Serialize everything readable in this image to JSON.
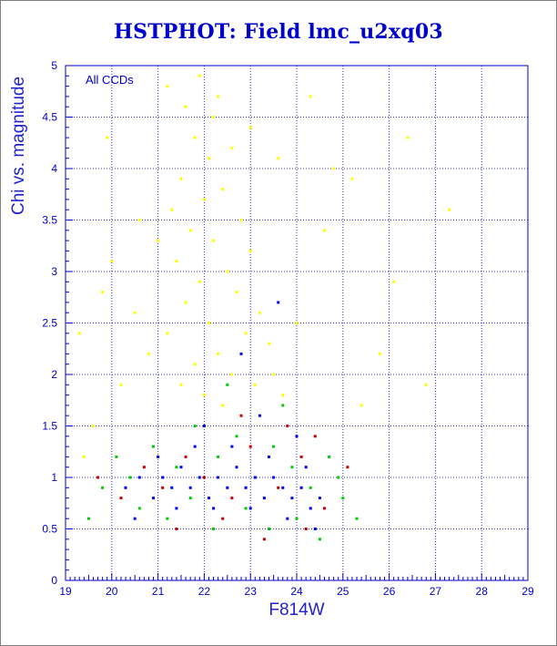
{
  "chart_data": {
    "type": "scatter",
    "title": "HSTPHOT: Field lmc_u2xq03",
    "xlabel": "F814W",
    "ylabel": "Chi vs. magnitude",
    "annotation": "All CCDs",
    "xlim": [
      19,
      29
    ],
    "ylim": [
      0,
      5
    ],
    "x_ticks": [
      "19",
      "20",
      "21",
      "22",
      "23",
      "24",
      "25",
      "26",
      "27",
      "28",
      "29"
    ],
    "y_ticks": [
      "0",
      "0.5",
      "1",
      "1.5",
      "2",
      "2.5",
      "3",
      "3.5",
      "4",
      "4.5",
      "5"
    ],
    "grid": true,
    "colors": {
      "axes": "#0000cc",
      "grid": "#3333cc",
      "yellow": "#ffff00",
      "blue": "#0000ff",
      "green": "#00cc00",
      "red": "#cc0000"
    },
    "series": [
      {
        "color": "yellow",
        "points": [
          [
            21.2,
            4.8
          ],
          [
            21.6,
            4.6
          ],
          [
            21.9,
            4.9
          ],
          [
            22.3,
            4.7
          ],
          [
            21.8,
            4.3
          ],
          [
            22.1,
            4.1
          ],
          [
            21.5,
            3.9
          ],
          [
            22.6,
            4.2
          ],
          [
            21.3,
            3.6
          ],
          [
            22.0,
            3.7
          ],
          [
            22.4,
            3.8
          ],
          [
            21.7,
            3.4
          ],
          [
            22.2,
            3.3
          ],
          [
            22.8,
            3.5
          ],
          [
            21.4,
            3.1
          ],
          [
            22.5,
            3.0
          ],
          [
            23.0,
            3.2
          ],
          [
            21.9,
            2.9
          ],
          [
            22.7,
            2.8
          ],
          [
            23.2,
            2.6
          ],
          [
            21.6,
            2.7
          ],
          [
            22.1,
            2.5
          ],
          [
            22.9,
            2.4
          ],
          [
            23.4,
            2.3
          ],
          [
            21.2,
            2.4
          ],
          [
            22.3,
            2.2
          ],
          [
            22.6,
            2.0
          ],
          [
            23.1,
            1.9
          ],
          [
            21.8,
            2.1
          ],
          [
            23.5,
            2.0
          ],
          [
            22.0,
            1.8
          ],
          [
            22.4,
            1.7
          ],
          [
            23.7,
            1.8
          ],
          [
            21.5,
            1.9
          ],
          [
            22.8,
            1.6
          ],
          [
            20.8,
            2.2
          ],
          [
            20.5,
            2.6
          ],
          [
            20.2,
            1.9
          ],
          [
            19.8,
            2.8
          ],
          [
            19.6,
            1.5
          ],
          [
            20.0,
            3.1
          ],
          [
            20.6,
            3.5
          ],
          [
            19.9,
            4.3
          ],
          [
            24.0,
            2.5
          ],
          [
            24.6,
            3.4
          ],
          [
            25.2,
            3.9
          ],
          [
            25.8,
            2.2
          ],
          [
            26.4,
            4.3
          ],
          [
            26.8,
            1.9
          ],
          [
            27.3,
            3.6
          ],
          [
            24.3,
            4.7
          ],
          [
            23.6,
            4.1
          ],
          [
            25.4,
            1.7
          ],
          [
            26.1,
            2.9
          ],
          [
            19.4,
            1.2
          ],
          [
            19.3,
            2.4
          ],
          [
            22.2,
            4.5
          ],
          [
            23.0,
            4.4
          ],
          [
            21.0,
            3.3
          ],
          [
            24.8,
            4.0
          ]
        ]
      },
      {
        "color": "green",
        "points": [
          [
            20.4,
            1.0
          ],
          [
            20.9,
            1.3
          ],
          [
            21.4,
            1.1
          ],
          [
            21.8,
            1.5
          ],
          [
            22.3,
            1.2
          ],
          [
            22.7,
            1.4
          ],
          [
            23.1,
            1.0
          ],
          [
            23.5,
            1.3
          ],
          [
            23.9,
            1.1
          ],
          [
            24.3,
            0.9
          ],
          [
            24.7,
            1.2
          ],
          [
            20.6,
            0.7
          ],
          [
            21.2,
            0.6
          ],
          [
            21.7,
            0.8
          ],
          [
            22.2,
            0.5
          ],
          [
            22.9,
            0.7
          ],
          [
            23.4,
            0.5
          ],
          [
            24.0,
            0.6
          ],
          [
            24.5,
            0.4
          ],
          [
            19.8,
            0.9
          ],
          [
            20.1,
            1.2
          ],
          [
            25.0,
            0.8
          ],
          [
            25.3,
            0.6
          ],
          [
            19.5,
            0.6
          ],
          [
            23.7,
            1.7
          ],
          [
            22.5,
            1.9
          ],
          [
            24.9,
            1.0
          ]
        ]
      },
      {
        "color": "red",
        "points": [
          [
            20.2,
            0.8
          ],
          [
            20.7,
            1.1
          ],
          [
            21.1,
            0.9
          ],
          [
            21.6,
            1.2
          ],
          [
            22.0,
            1.0
          ],
          [
            22.6,
            0.8
          ],
          [
            23.0,
            1.3
          ],
          [
            23.6,
            0.9
          ],
          [
            24.1,
            1.2
          ],
          [
            24.6,
            0.7
          ],
          [
            21.4,
            0.5
          ],
          [
            22.4,
            0.6
          ],
          [
            23.3,
            0.4
          ],
          [
            24.2,
            0.5
          ],
          [
            19.7,
            1.0
          ],
          [
            25.1,
            1.1
          ],
          [
            23.8,
            1.5
          ],
          [
            22.8,
            1.6
          ],
          [
            24.4,
            1.4
          ]
        ]
      },
      {
        "color": "blue",
        "points": [
          [
            20.3,
            0.9
          ],
          [
            20.6,
            1.0
          ],
          [
            20.9,
            0.8
          ],
          [
            21.1,
            1.0
          ],
          [
            21.3,
            0.9
          ],
          [
            21.5,
            1.1
          ],
          [
            21.7,
            0.9
          ],
          [
            21.9,
            1.0
          ],
          [
            22.1,
            0.8
          ],
          [
            22.3,
            1.0
          ],
          [
            22.5,
            0.9
          ],
          [
            22.7,
            1.1
          ],
          [
            22.9,
            0.9
          ],
          [
            23.1,
            1.0
          ],
          [
            23.3,
            0.8
          ],
          [
            23.5,
            1.0
          ],
          [
            23.7,
            0.9
          ],
          [
            23.9,
            0.8
          ],
          [
            24.1,
            0.9
          ],
          [
            24.3,
            0.7
          ],
          [
            24.5,
            0.8
          ],
          [
            21.0,
            1.2
          ],
          [
            21.8,
            1.3
          ],
          [
            22.6,
            1.3
          ],
          [
            23.4,
            1.2
          ],
          [
            24.2,
            1.1
          ],
          [
            21.4,
            0.7
          ],
          [
            22.2,
            0.7
          ],
          [
            23.0,
            0.7
          ],
          [
            23.8,
            0.6
          ],
          [
            24.4,
            0.5
          ],
          [
            20.5,
            0.6
          ],
          [
            22.0,
            1.5
          ],
          [
            23.2,
            1.6
          ],
          [
            24.0,
            1.4
          ],
          [
            22.8,
            2.2
          ],
          [
            23.6,
            2.7
          ]
        ]
      }
    ]
  }
}
